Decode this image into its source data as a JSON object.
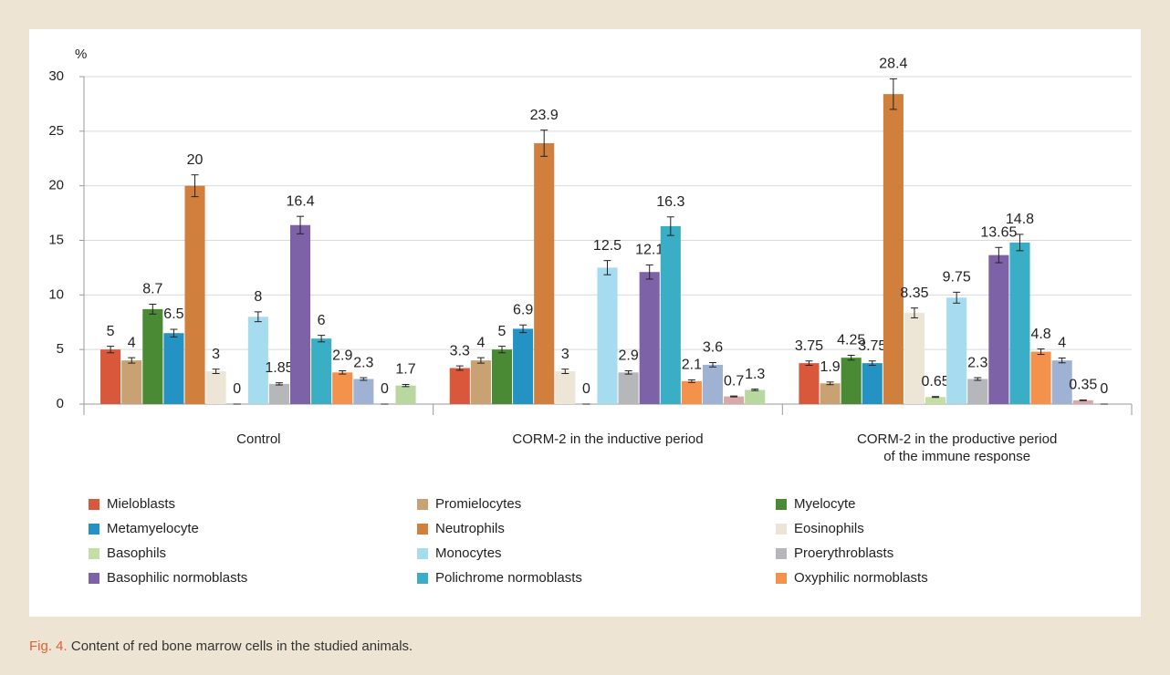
{
  "chart_data": {
    "type": "bar",
    "ylabel": "%",
    "categories": [
      "Control",
      "CORM-2 in the inductive period",
      "CORM-2 in the productive period\nof the immune response"
    ],
    "ylim": [
      0,
      30
    ],
    "yticks": [
      0,
      5,
      10,
      15,
      20,
      25,
      30
    ],
    "grid": true,
    "series": [
      {
        "name": "Mieloblasts",
        "color": "#d9573b",
        "values": [
          5,
          3.3,
          3.75
        ],
        "errors": [
          0.3,
          0.2,
          0.2
        ]
      },
      {
        "name": "Promielocytes",
        "color": "#c9a274",
        "values": [
          4,
          4,
          1.9
        ],
        "errors": [
          0.25,
          0.25,
          0.12
        ]
      },
      {
        "name": "Myelocyte",
        "color": "#4a8a35",
        "values": [
          8.7,
          5,
          4.25
        ],
        "errors": [
          0.45,
          0.3,
          0.22
        ]
      },
      {
        "name": "Metamyelocyte",
        "color": "#2493c4",
        "values": [
          6.5,
          6.9,
          3.75
        ],
        "errors": [
          0.35,
          0.35,
          0.2
        ]
      },
      {
        "name": "Neutrophils",
        "color": "#d07f3c",
        "values": [
          20,
          23.9,
          28.4
        ],
        "errors": [
          1.0,
          1.2,
          1.4
        ]
      },
      {
        "name": "Eosinophils",
        "color": "#ede6d6",
        "values": [
          3,
          3,
          8.35
        ],
        "errors": [
          0.2,
          0.2,
          0.45
        ]
      },
      {
        "name": "Basophils",
        "color": "#c5dea6",
        "values": [
          0,
          0,
          0.65
        ],
        "errors": [
          0,
          0,
          0.04
        ]
      },
      {
        "name": "Monocytes",
        "color": "#a6dcf0",
        "values": [
          8,
          12.5,
          9.75
        ],
        "errors": [
          0.45,
          0.65,
          0.5
        ]
      },
      {
        "name": "Proerythroblasts",
        "color": "#b6b7bb",
        "values": [
          1.85,
          2.9,
          2.3
        ],
        "errors": [
          0.1,
          0.15,
          0.12
        ]
      },
      {
        "name": "Basophilic normoblasts",
        "color": "#7e62a8",
        "values": [
          16.4,
          12.1,
          13.65
        ],
        "errors": [
          0.8,
          0.65,
          0.7
        ]
      },
      {
        "name": "Polichrome normoblasts",
        "color": "#3aaec4",
        "values": [
          6,
          16.3,
          14.8
        ],
        "errors": [
          0.3,
          0.85,
          0.75
        ]
      },
      {
        "name": "Oxyphilic normoblasts",
        "color": "#f4924b",
        "values": [
          2.9,
          2.1,
          4.8
        ],
        "errors": [
          0.15,
          0.12,
          0.25
        ]
      },
      {
        "color": "#9fb2d4",
        "values": [
          2.3,
          3.6,
          4
        ],
        "errors": [
          0.12,
          0.2,
          0.22
        ]
      },
      {
        "color": "#d9a8a8",
        "values": [
          0,
          0.7,
          0.35
        ],
        "errors": [
          0,
          0.04,
          0.03
        ]
      },
      {
        "color": "#b8d8a0",
        "values": [
          1.7,
          1.3,
          0
        ],
        "errors": [
          0.1,
          0.07,
          0
        ]
      }
    ]
  },
  "caption": {
    "label": "Fig. 4.",
    "text": "Content of red bone marrow cells in the studied animals."
  }
}
